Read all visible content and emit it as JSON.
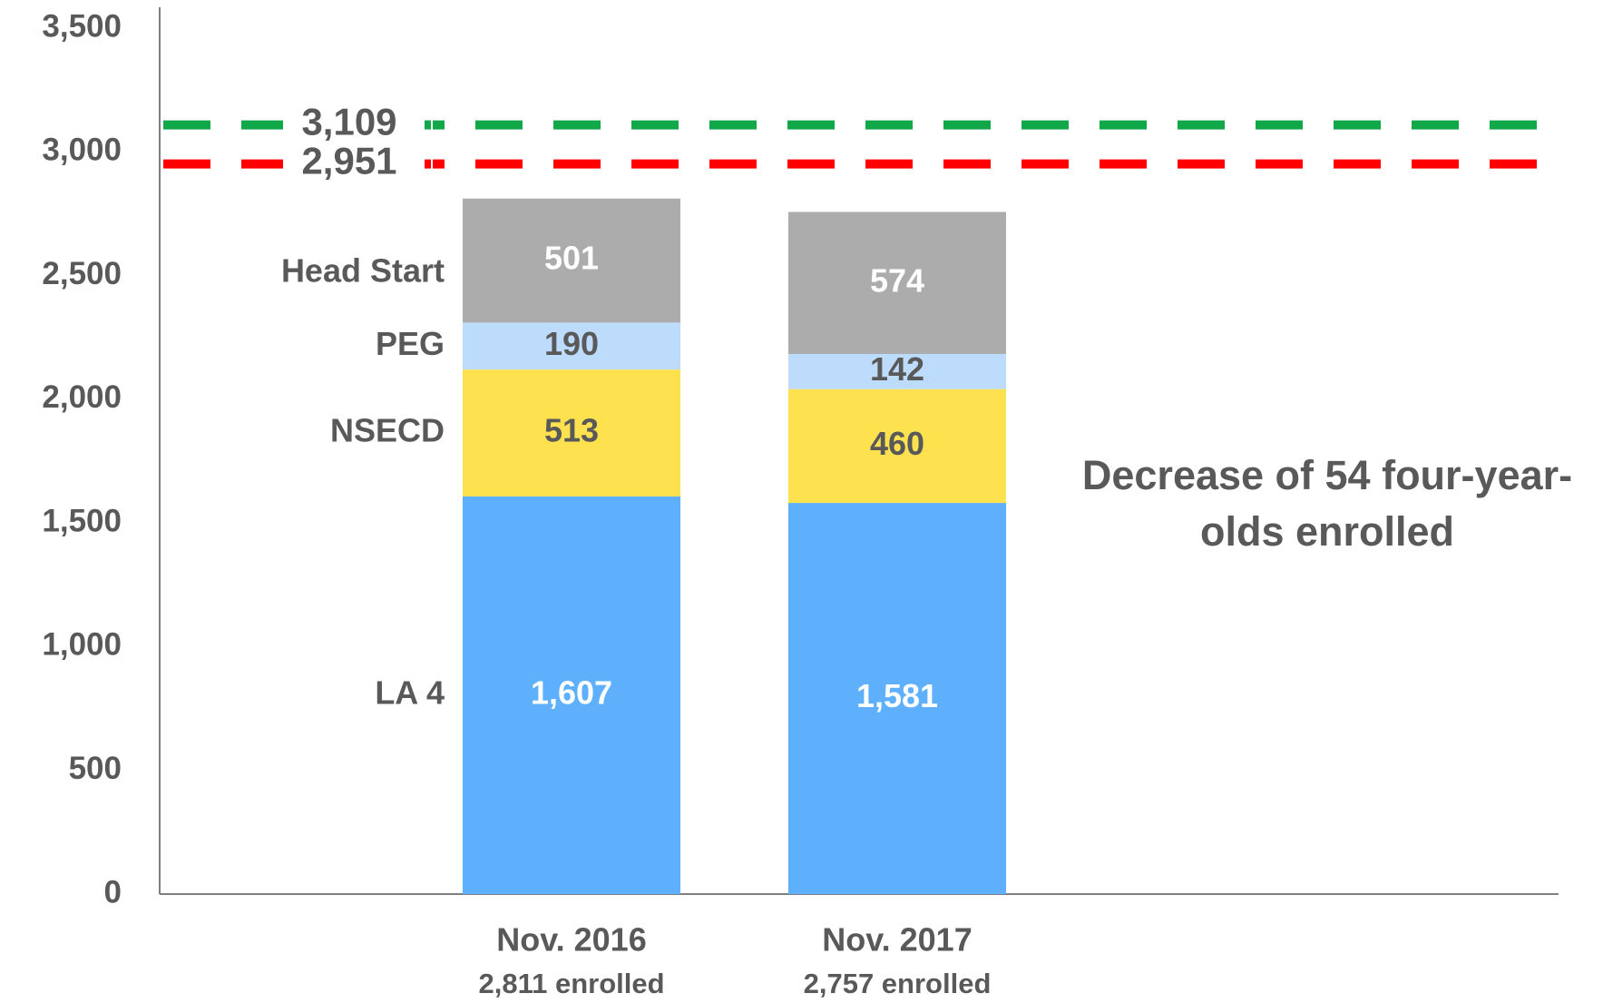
{
  "chart_data": {
    "type": "stacked_bar",
    "categories": [
      "Nov. 2016",
      "Nov. 2017"
    ],
    "category_sublabels": [
      "2,811 enrolled",
      "2,757 enrolled"
    ],
    "series": [
      {
        "name": "LA 4",
        "color": "#5eb0fd",
        "label_color": "#ffffff",
        "values": [
          1607,
          1581
        ],
        "value_labels": [
          "1,607",
          "1,581"
        ]
      },
      {
        "name": "NSECD",
        "color": "#fde14f",
        "label_color": "#595959",
        "values": [
          513,
          460
        ]
      },
      {
        "name": "PEG",
        "color": "#bddcfb",
        "label_color": "#595959",
        "values": [
          190,
          142
        ]
      },
      {
        "name": "Head Start",
        "color": "#acacac",
        "label_color": "#ffffff",
        "values": [
          501,
          574
        ]
      }
    ],
    "reference_lines": [
      {
        "value": 3109,
        "label": "3,109",
        "color": "#11a84a"
      },
      {
        "value": 2951,
        "label": "2,951",
        "color": "#ff0000"
      }
    ],
    "annotation": [
      "Decrease of 54 four-year-",
      "olds enrolled"
    ],
    "ylim": [
      0,
      3500
    ],
    "yticks": [
      0,
      500,
      {
        "value": 1000,
        "label": "1,000"
      },
      {
        "value": 1500,
        "label": "1,500"
      },
      {
        "value": 2000,
        "label": "2,000"
      },
      {
        "value": 2500,
        "label": "2,500"
      },
      {
        "value": 3000,
        "label": "3,000"
      },
      {
        "value": 3500,
        "label": "3,500"
      }
    ],
    "grid": false
  }
}
